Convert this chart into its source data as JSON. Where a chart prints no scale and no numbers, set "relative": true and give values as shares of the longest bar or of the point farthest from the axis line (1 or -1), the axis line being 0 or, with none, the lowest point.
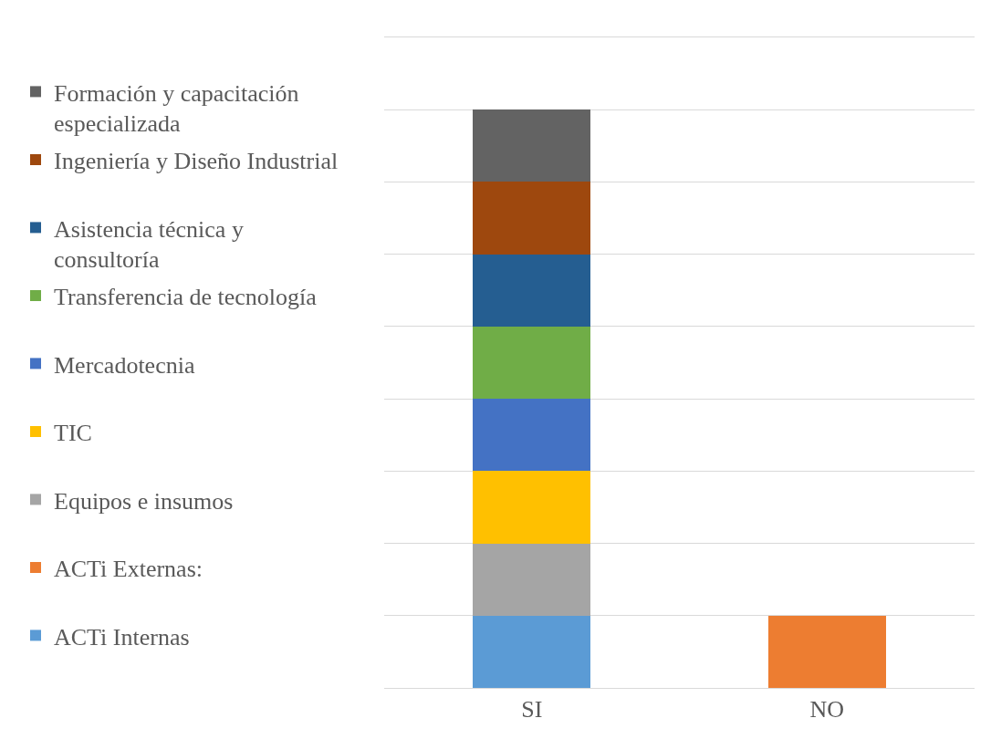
{
  "chart_data": {
    "type": "bar",
    "categories": [
      "SI",
      "NO"
    ],
    "stacked": true,
    "relative": true,
    "grid": "y",
    "legend": "left",
    "series": [
      {
        "name": "ACTi Internas",
        "color": "#5b9bd5",
        "values": [
          0.125,
          null
        ]
      },
      {
        "name": "ACTi Externas:",
        "color": "#ed7d31",
        "values": [
          null,
          0.125
        ]
      },
      {
        "name": "Equipos e insumos",
        "color": "#a5a5a5",
        "values": [
          0.125,
          null
        ]
      },
      {
        "name": "TIC",
        "color": "#ffc000",
        "values": [
          0.125,
          null
        ]
      },
      {
        "name": "Mercadotecnia",
        "color": "#4472c4",
        "values": [
          0.125,
          null
        ]
      },
      {
        "name": "Transferencia de tecnología",
        "color": "#70ad47",
        "values": [
          0.125,
          null
        ]
      },
      {
        "name": "Asistencia técnica y consultoría",
        "color": "#255e91",
        "values": [
          0.125,
          null
        ]
      },
      {
        "name": "Ingeniería y Diseño Industrial",
        "color": "#9e480e",
        "values": [
          0.125,
          null
        ]
      },
      {
        "name": "Formación y capacitación especializada",
        "color": "#636363",
        "values": [
          0.125,
          null
        ]
      }
    ]
  }
}
